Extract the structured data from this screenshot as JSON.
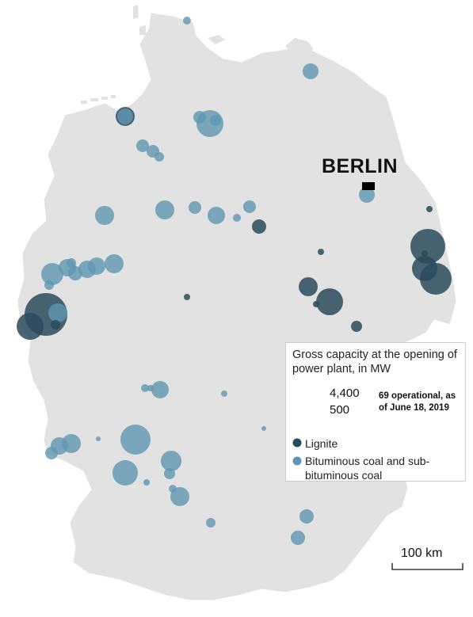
{
  "city": {
    "name": "BERLIN"
  },
  "legend": {
    "title": "Gross capacity at the opening of power plant, in MW",
    "size_large": "4,400",
    "size_small": "500",
    "status": "69 operational, as of June 18, 2019",
    "categories": [
      {
        "label": "Lignite",
        "color": "#2a4b5d"
      },
      {
        "label": "Bituminous coal and sub-bituminous coal",
        "color": "#5f97b2"
      }
    ]
  },
  "scale": {
    "label": "100 km"
  },
  "colors": {
    "land": "#e2e2e2",
    "border": "#ffffff",
    "lignite": "#2a4b5d",
    "bituminous": "#5f97b2"
  }
}
